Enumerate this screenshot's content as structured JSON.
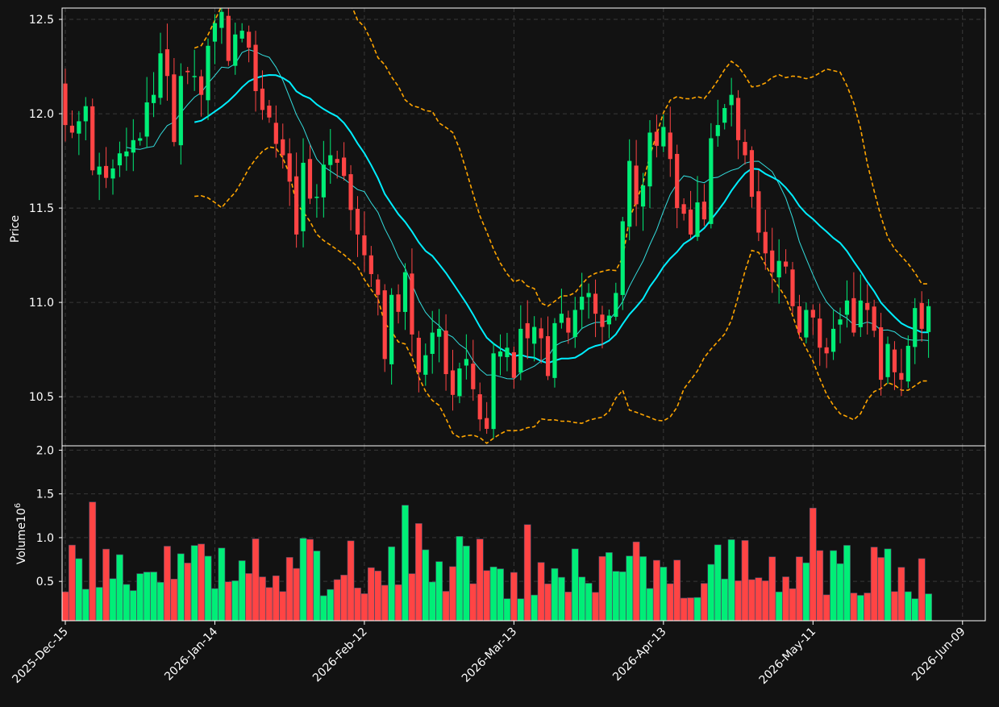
{
  "colors": {
    "background": "#121212",
    "grid": "#3a3a3a",
    "axis": "#ffffff",
    "up": "#00ee77",
    "down": "#ff4444",
    "ma_fast": "#33dddd",
    "ma_slow": "#00eeff",
    "bands": "#ffa500"
  },
  "chart_data": {
    "type": "candlestick",
    "ylabel_price": "Price",
    "ylabel_volume": "Volume",
    "volume_scale_label": "10",
    "volume_scale_exp": "6",
    "price_ylim": [
      10.24,
      12.56
    ],
    "volume_ylim": [
      0.05,
      2.05
    ],
    "price_ticks": [
      "10.5",
      "11.0",
      "11.5",
      "12.0",
      "12.5"
    ],
    "price_tick_values": [
      10.5,
      11.0,
      11.5,
      12.0,
      12.5
    ],
    "volume_ticks": [
      "0.5",
      "1.0",
      "1.5",
      "2.0"
    ],
    "volume_tick_values": [
      0.5,
      1.0,
      1.5,
      2.0
    ],
    "x_ticks": [
      "2025-Dec-15",
      "2026-Jan-14",
      "2026-Feb-12",
      "2026-Mar-13",
      "2026-Apr-13",
      "2026-May-11",
      "2026-Jun-09"
    ],
    "x_tick_index": [
      0,
      22,
      44,
      66,
      88,
      110,
      132
    ],
    "grid": true,
    "close": [
      11.94,
      11.9,
      11.96,
      12.04,
      11.7,
      11.72,
      11.66,
      11.71,
      11.79,
      11.8,
      11.86,
      11.87,
      12.06,
      12.1,
      12.32,
      12.2,
      11.85,
      12.2,
      12.22,
      12.2,
      12.1,
      12.36,
      12.48,
      12.54,
      12.28,
      12.42,
      12.44,
      12.35,
      12.12,
      12.02,
      11.98,
      11.84,
      11.78,
      11.64,
      11.36,
      11.74,
      11.55,
      11.56,
      11.73,
      11.78,
      11.74,
      11.67,
      11.49,
      11.36,
      11.25,
      11.15,
      11.04,
      10.7,
      11.04,
      10.95,
      11.16,
      10.83,
      10.63,
      10.72,
      10.84,
      10.86,
      10.62,
      10.51,
      10.65,
      10.7,
      10.54,
      10.38,
      10.33,
      10.73,
      10.74,
      10.76,
      10.6,
      10.86,
      10.81,
      10.87,
      10.81,
      10.61,
      10.89,
      10.94,
      10.84,
      10.96,
      11.03,
      11.05,
      10.94,
      10.87,
      10.93,
      11.05,
      11.43,
      11.75,
      11.52,
      11.62,
      11.9,
      11.83,
      11.93,
      11.76,
      11.5,
      11.47,
      11.36,
      11.53,
      11.44,
      11.87,
      11.94,
      12.03,
      12.1,
      11.86,
      11.78,
      11.56,
      11.37,
      11.26,
      11.16,
      11.22,
      11.19,
      10.98,
      10.84,
      10.96,
      10.92,
      10.76,
      10.73,
      10.86,
      10.91,
      11.01,
      10.84,
      11.01,
      10.96,
      10.85,
      10.59,
      10.78,
      10.63,
      10.59,
      10.77,
      10.97,
      10.86,
      10.98
    ]
  }
}
